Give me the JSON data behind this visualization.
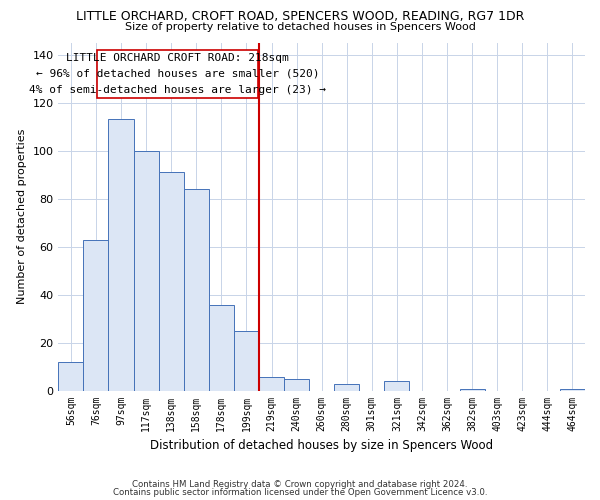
{
  "title": "LITTLE ORCHARD, CROFT ROAD, SPENCERS WOOD, READING, RG7 1DR",
  "subtitle": "Size of property relative to detached houses in Spencers Wood",
  "xlabel": "Distribution of detached houses by size in Spencers Wood",
  "ylabel": "Number of detached properties",
  "bin_labels": [
    "56sqm",
    "76sqm",
    "97sqm",
    "117sqm",
    "138sqm",
    "158sqm",
    "178sqm",
    "199sqm",
    "219sqm",
    "240sqm",
    "260sqm",
    "280sqm",
    "301sqm",
    "321sqm",
    "342sqm",
    "362sqm",
    "382sqm",
    "403sqm",
    "423sqm",
    "444sqm",
    "464sqm"
  ],
  "bar_heights": [
    12,
    63,
    113,
    100,
    91,
    84,
    36,
    25,
    6,
    5,
    0,
    3,
    0,
    4,
    0,
    0,
    1,
    0,
    0,
    0,
    1
  ],
  "bar_color": "#dce6f5",
  "bar_edge_color": "#4472b8",
  "vline_color": "#cc0000",
  "annotation_title": "LITTLE ORCHARD CROFT ROAD: 218sqm",
  "annotation_line1": "← 96% of detached houses are smaller (520)",
  "annotation_line2": "4% of semi-detached houses are larger (23) →",
  "annotation_box_color": "#ffffff",
  "annotation_box_edge": "#cc0000",
  "ylim": [
    0,
    145
  ],
  "yticks": [
    0,
    20,
    40,
    60,
    80,
    100,
    120,
    140
  ],
  "footer1": "Contains HM Land Registry data © Crown copyright and database right 2024.",
  "footer2": "Contains public sector information licensed under the Open Government Licence v3.0.",
  "bg_color": "#ffffff",
  "grid_color": "#c8d4e8"
}
